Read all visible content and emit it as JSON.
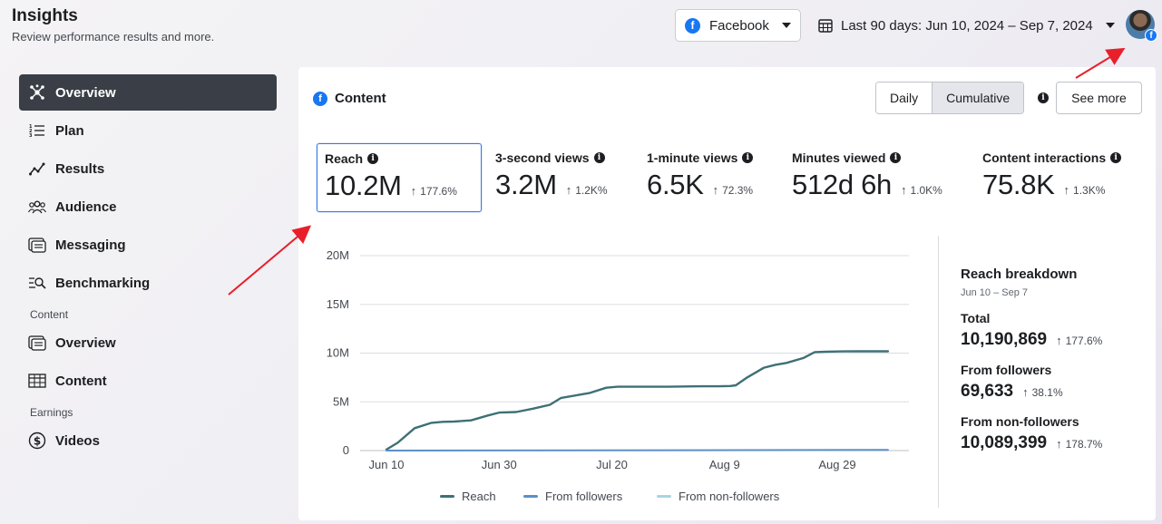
{
  "header": {
    "title": "Insights",
    "subtitle": "Review performance results and more."
  },
  "platform_select": {
    "logo": "f",
    "value": "Facebook"
  },
  "date_range": {
    "value": "Last 90 days: Jun 10, 2024 – Sep 7, 2024"
  },
  "sidebar": {
    "items": [
      {
        "label": "Overview",
        "icon": "overview-icon",
        "active": true
      },
      {
        "label": "Plan",
        "icon": "plan-icon"
      },
      {
        "label": "Results",
        "icon": "results-icon"
      },
      {
        "label": "Audience",
        "icon": "audience-icon"
      },
      {
        "label": "Messaging",
        "icon": "messaging-icon"
      },
      {
        "label": "Benchmarking",
        "icon": "benchmarking-icon"
      }
    ],
    "content_section": "Content",
    "content_items": [
      {
        "label": "Overview",
        "icon": "content-overview-icon"
      },
      {
        "label": "Content",
        "icon": "table-icon"
      }
    ],
    "earnings_section": "Earnings",
    "earnings_items": [
      {
        "label": "Videos",
        "icon": "dollar-icon"
      }
    ]
  },
  "card": {
    "title": "Content",
    "toggle": [
      "Daily",
      "Cumulative"
    ],
    "toggle_selected": "Cumulative",
    "see_more": "See more"
  },
  "metrics": [
    {
      "label": "Reach",
      "value": "10.2M",
      "change": "177.6%",
      "selected": true
    },
    {
      "label": "3-second views",
      "value": "3.2M",
      "change": "1.2K%"
    },
    {
      "label": "1-minute views",
      "value": "6.5K",
      "change": "72.3%"
    },
    {
      "label": "Minutes viewed",
      "value": "512d 6h",
      "change": "1.0K%"
    },
    {
      "label": "Content interactions",
      "value": "75.8K",
      "change": "1.3K%"
    }
  ],
  "chart_data": {
    "type": "line",
    "title": "",
    "ylim": [
      0,
      20000000
    ],
    "y_ticks": [
      {
        "v": 0,
        "label": "0"
      },
      {
        "v": 5000000,
        "label": "5M"
      },
      {
        "v": 10000000,
        "label": "10M"
      },
      {
        "v": 15000000,
        "label": "15M"
      },
      {
        "v": 20000000,
        "label": "20M"
      }
    ],
    "x_range": [
      0,
      89
    ],
    "x_ticks": [
      {
        "day": 0,
        "label": "Jun 10"
      },
      {
        "day": 20,
        "label": "Jun 30"
      },
      {
        "day": 40,
        "label": "Jul 20"
      },
      {
        "day": 60,
        "label": "Aug 9"
      },
      {
        "day": 80,
        "label": "Aug 29"
      }
    ],
    "series": [
      {
        "name": "Reach",
        "color": "#3e7076",
        "x": [
          0,
          2,
          5,
          8,
          10,
          12,
          15,
          18,
          20,
          23,
          26,
          29,
          31,
          34,
          36,
          39,
          41,
          44,
          47,
          50,
          53,
          56,
          59,
          61,
          62,
          64,
          67,
          69,
          71,
          74,
          76,
          78,
          81,
          84,
          89
        ],
        "y": [
          100000,
          800000,
          2300000,
          2850000,
          2950000,
          2980000,
          3100000,
          3600000,
          3900000,
          3950000,
          4300000,
          4700000,
          5400000,
          5700000,
          5900000,
          6450000,
          6550000,
          6550000,
          6550000,
          6550000,
          6580000,
          6600000,
          6600000,
          6620000,
          6700000,
          7500000,
          8500000,
          8800000,
          9000000,
          9500000,
          10100000,
          10150000,
          10180000,
          10190000,
          10190000
        ]
      },
      {
        "name": "From followers",
        "color": "#5b8fc7",
        "x": [
          0,
          89
        ],
        "y": [
          0,
          69633
        ]
      },
      {
        "name": "From non-followers",
        "color": "#a8d3e3",
        "x": [],
        "y": []
      }
    ]
  },
  "breakdown": {
    "title": "Reach breakdown",
    "date": "Jun 10 – Sep 7",
    "items": [
      {
        "label": "Total",
        "value": "10,190,869",
        "change": "177.6%"
      },
      {
        "label": "From followers",
        "value": "69,633",
        "change": "38.1%"
      },
      {
        "label": "From non-followers",
        "value": "10,089,399",
        "change": "178.7%"
      }
    ]
  },
  "colors": {
    "annotation": "#e8202a",
    "selected_border": "#3578e5",
    "active_nav": "#3a3f47"
  }
}
